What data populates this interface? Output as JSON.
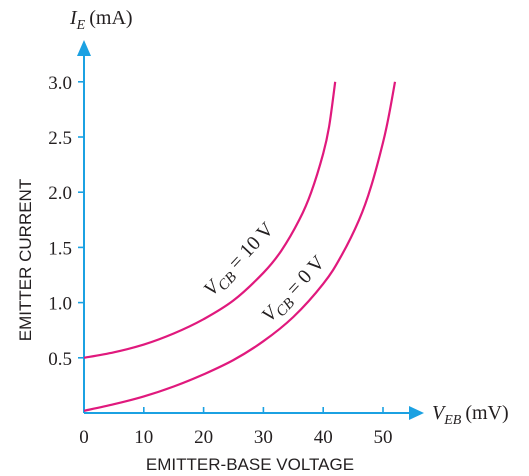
{
  "chart_data": {
    "type": "line",
    "title": "",
    "xlabel": "EMITTER-BASE  VOLTAGE",
    "ylabel": "EMITTER  CURRENT",
    "x_axis_symbol": {
      "main": "V",
      "sub": "EB",
      "unit": "(mV)"
    },
    "y_axis_symbol": {
      "main": "I",
      "sub": "E",
      "unit": "(mA)"
    },
    "xlim": [
      0,
      57
    ],
    "ylim": [
      0,
      3.35
    ],
    "x_ticks": [
      0,
      10,
      20,
      30,
      40,
      50
    ],
    "x_tick_labels": [
      "0",
      "10",
      "20",
      "30",
      "40",
      "50"
    ],
    "y_ticks": [
      0.5,
      1.0,
      1.5,
      2.0,
      2.5,
      3.0
    ],
    "y_tick_labels": [
      "0.5",
      "1.0",
      "1.5",
      "2.0",
      "2.5",
      "3.0"
    ],
    "grid": false,
    "legend": "none",
    "series": [
      {
        "label": {
          "main": "V",
          "sub": "CB",
          "rest": " = 10 V"
        },
        "color": "#e0197d",
        "x": [
          0,
          5,
          10,
          15,
          20,
          25,
          30,
          33,
          36,
          38,
          40,
          41,
          42
        ],
        "y": [
          0.5,
          0.55,
          0.62,
          0.72,
          0.85,
          1.02,
          1.27,
          1.47,
          1.75,
          2.0,
          2.35,
          2.6,
          3.0
        ]
      },
      {
        "label": {
          "main": "V",
          "sub": "CB",
          "rest": " = 0 V"
        },
        "color": "#e0197d",
        "x": [
          0,
          5,
          10,
          15,
          20,
          25,
          30,
          35,
          40,
          43,
          46,
          48,
          50,
          51,
          52
        ],
        "y": [
          0.02,
          0.08,
          0.15,
          0.24,
          0.35,
          0.48,
          0.65,
          0.87,
          1.17,
          1.42,
          1.75,
          2.05,
          2.45,
          2.7,
          3.0
        ]
      }
    ]
  },
  "colors": {
    "axis": "#1ba1e2",
    "curve": "#e0197d",
    "text": "#231f20"
  }
}
